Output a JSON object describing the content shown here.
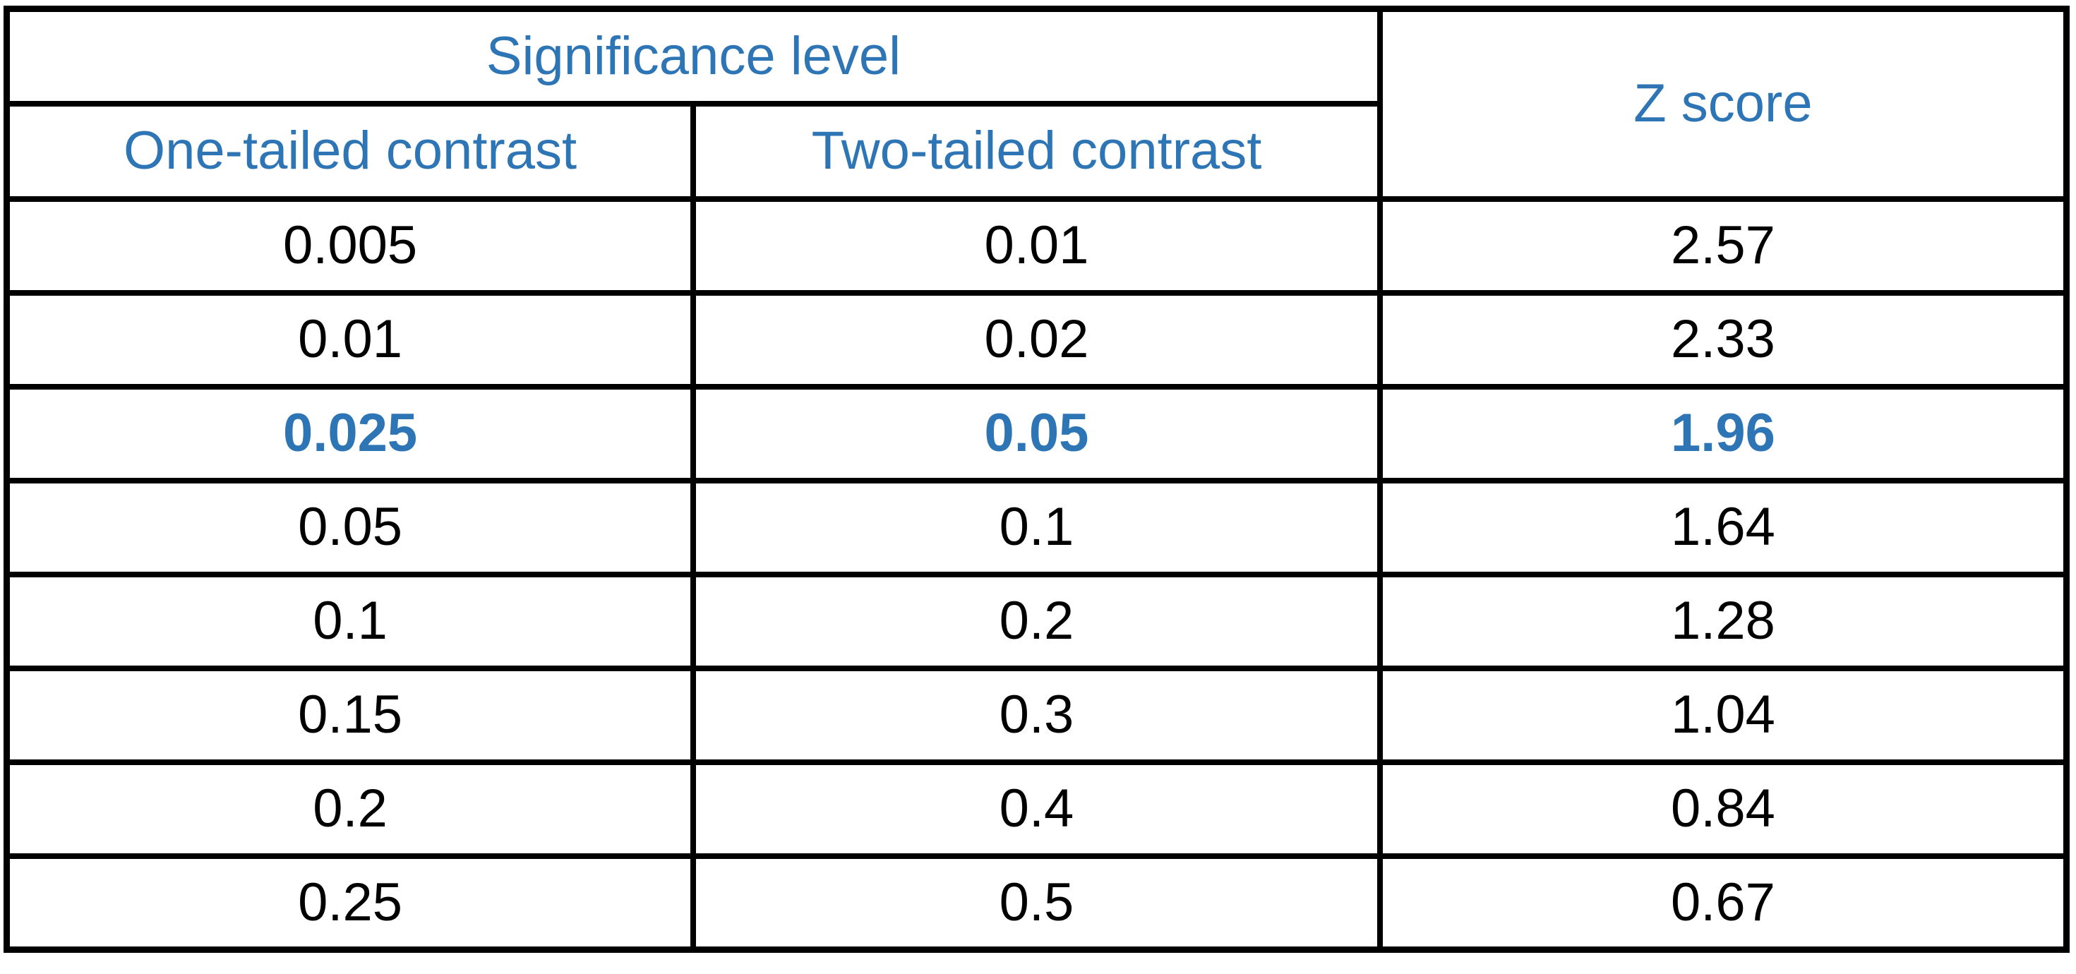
{
  "chart_data": {
    "type": "table",
    "title": "",
    "column_group": {
      "label": "Significance level",
      "span": 2
    },
    "columns": [
      "One-tailed contrast",
      "Two-tailed contrast",
      "Z score"
    ],
    "rows": [
      [
        "0.005",
        "0.01",
        "2.57"
      ],
      [
        "0.01",
        "0.02",
        "2.33"
      ],
      [
        "0.025",
        "0.05",
        "1.96"
      ],
      [
        "0.05",
        "0.1",
        "1.64"
      ],
      [
        "0.1",
        "0.2",
        "1.28"
      ],
      [
        "0.15",
        "0.3",
        "1.04"
      ],
      [
        "0.2",
        "0.4",
        "0.84"
      ],
      [
        "0.25",
        "0.5",
        "0.67"
      ]
    ],
    "highlighted_row_index": 2,
    "legend_position": "none",
    "grid": true
  },
  "header": {
    "group_label": "Significance level",
    "one_tailed_label": "One-tailed contrast",
    "two_tailed_label": "Two-tailed contrast",
    "z_score_label": "Z score"
  },
  "colors": {
    "header_text": "#2E75B6",
    "highlight_text": "#2E75B6",
    "body_text": "#000000",
    "border": "#000000",
    "background": "#FFFFFF"
  }
}
